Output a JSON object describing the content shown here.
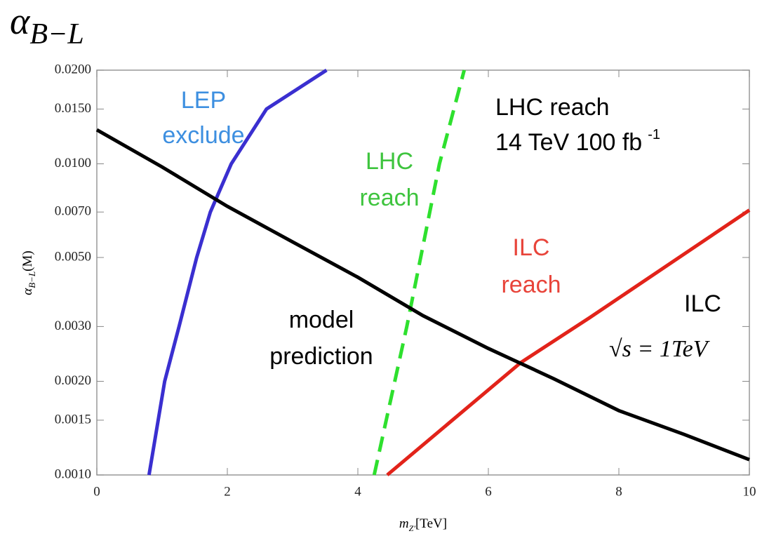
{
  "chart_data": {
    "type": "line",
    "title": {
      "symbol": "α",
      "subscript": "B−L"
    },
    "y_label": {
      "symbol": "α",
      "subscript": "B−L",
      "suffix": "(M)"
    },
    "x_label": {
      "symbol": "m",
      "subscript": "Z′",
      "suffix": "[TeV]"
    },
    "log_y": true,
    "xlim": [
      0,
      10
    ],
    "ylim": [
      0.001,
      0.02
    ],
    "xticks": [
      0,
      2,
      4,
      6,
      8,
      10
    ],
    "yticks": [
      {
        "value": 0.001,
        "label": "0.0010"
      },
      {
        "value": 0.0015,
        "label": "0.0015"
      },
      {
        "value": 0.002,
        "label": "0.0020"
      },
      {
        "value": 0.003,
        "label": "0.0030"
      },
      {
        "value": 0.005,
        "label": "0.0050"
      },
      {
        "value": 0.007,
        "label": "0.0070"
      },
      {
        "value": 0.01,
        "label": "0.0100"
      },
      {
        "value": 0.015,
        "label": "0.0150"
      },
      {
        "value": 0.02,
        "label": "0.0200"
      }
    ],
    "series": [
      {
        "label": [
          "LEP",
          "exclude"
        ],
        "color": "#3a2fd0",
        "label_color": "#3d8fe0",
        "dashed": false,
        "x": [
          0.8,
          1.04,
          1.26,
          1.53,
          1.74,
          2.06,
          2.6,
          3.52
        ],
        "values": [
          0.001,
          0.002,
          0.003,
          0.005,
          0.007,
          0.01,
          0.015,
          0.02
        ]
      },
      {
        "label": [
          "LHC",
          "reach"
        ],
        "color": "#2ee02e",
        "label_color": "#3ec43e",
        "dashed": true,
        "x": [
          4.25,
          4.75,
          5.25,
          5.63
        ],
        "values": [
          0.001,
          0.003,
          0.01,
          0.02
        ]
      },
      {
        "label": [
          "ILC",
          "reach"
        ],
        "color": "#e2231a",
        "label_color": "#e8443a",
        "dashed": false,
        "x": [
          4.45,
          6.5,
          7.55,
          10
        ],
        "values": [
          0.001,
          0.0023,
          0.0032,
          0.0071
        ]
      },
      {
        "label": [
          "model",
          "prediction"
        ],
        "color": "#000000",
        "label_color": "#000000",
        "dashed": false,
        "x": [
          0,
          1,
          2,
          3,
          4,
          5,
          6,
          7,
          8,
          9,
          10
        ],
        "values": [
          0.01286,
          0.00977,
          0.0073,
          0.00561,
          0.00432,
          0.00325,
          0.00255,
          0.00204,
          0.00161,
          0.00135,
          0.00112
        ]
      }
    ],
    "annotations": [
      {
        "text": "LHC reach"
      },
      {
        "text": "14 TeV  100 fb",
        "superscript": "-1"
      },
      {
        "text": "ILC"
      },
      {
        "text": "√s = 1TeV"
      }
    ]
  }
}
